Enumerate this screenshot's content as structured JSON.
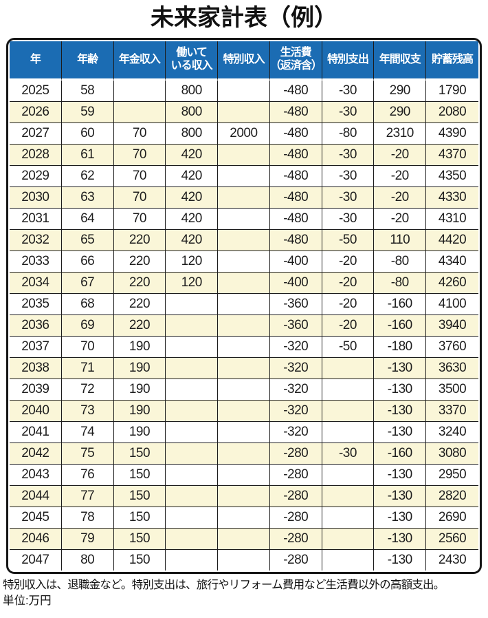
{
  "title": "未来家計表（例）",
  "chart_data": {
    "type": "table",
    "title": "未来家計表（例）",
    "unit": "万円",
    "columns": [
      "年",
      "年齢",
      "年金収入",
      "働いている収入",
      "特別収入",
      "生活費（返済含）",
      "特別支出",
      "年間収支",
      "貯蓄残高"
    ],
    "header_lines": [
      [
        "年"
      ],
      [
        "年齢"
      ],
      [
        "年金収入"
      ],
      [
        "働いて",
        "いる収入"
      ],
      [
        "特別収入"
      ],
      [
        "生活費",
        "（返済含）"
      ],
      [
        "特別支出"
      ],
      [
        "年間収支"
      ],
      [
        "貯蓄残高"
      ]
    ],
    "rows": [
      [
        2025,
        58,
        null,
        800,
        null,
        -480,
        -30,
        290,
        1790
      ],
      [
        2026,
        59,
        null,
        800,
        null,
        -480,
        -30,
        290,
        2080
      ],
      [
        2027,
        60,
        70,
        800,
        2000,
        -480,
        -80,
        2310,
        4390
      ],
      [
        2028,
        61,
        70,
        420,
        null,
        -480,
        -30,
        -20,
        4370
      ],
      [
        2029,
        62,
        70,
        420,
        null,
        -480,
        -30,
        -20,
        4350
      ],
      [
        2030,
        63,
        70,
        420,
        null,
        -480,
        -30,
        -20,
        4330
      ],
      [
        2031,
        64,
        70,
        420,
        null,
        -480,
        -30,
        -20,
        4310
      ],
      [
        2032,
        65,
        220,
        420,
        null,
        -480,
        -50,
        110,
        4420
      ],
      [
        2033,
        66,
        220,
        120,
        null,
        -400,
        -20,
        -80,
        4340
      ],
      [
        2034,
        67,
        220,
        120,
        null,
        -400,
        -20,
        -80,
        4260
      ],
      [
        2035,
        68,
        220,
        null,
        null,
        -360,
        -20,
        -160,
        4100
      ],
      [
        2036,
        69,
        220,
        null,
        null,
        -360,
        -20,
        -160,
        3940
      ],
      [
        2037,
        70,
        190,
        null,
        null,
        -320,
        -50,
        -180,
        3760
      ],
      [
        2038,
        71,
        190,
        null,
        null,
        -320,
        null,
        -130,
        3630
      ],
      [
        2039,
        72,
        190,
        null,
        null,
        -320,
        null,
        -130,
        3500
      ],
      [
        2040,
        73,
        190,
        null,
        null,
        -320,
        null,
        -130,
        3370
      ],
      [
        2041,
        74,
        190,
        null,
        null,
        -320,
        null,
        -130,
        3240
      ],
      [
        2042,
        75,
        150,
        null,
        null,
        -280,
        -30,
        -160,
        3080
      ],
      [
        2043,
        76,
        150,
        null,
        null,
        -280,
        null,
        -130,
        2950
      ],
      [
        2044,
        77,
        150,
        null,
        null,
        -280,
        null,
        -130,
        2820
      ],
      [
        2045,
        78,
        150,
        null,
        null,
        -280,
        null,
        -130,
        2690
      ],
      [
        2046,
        79,
        150,
        null,
        null,
        -280,
        null,
        -130,
        2560
      ],
      [
        2047,
        80,
        150,
        null,
        null,
        -280,
        null,
        -130,
        2430
      ]
    ],
    "layout": {
      "stripe_pattern": "alternating rows, white then cream starting at 2025",
      "grid": true
    }
  },
  "footnotes": {
    "line1": "特別収入は、退職金など。特別支出は、旅行やリフォーム費用など生活費以外の高額支出。",
    "line2": "単位:万円"
  },
  "colors": {
    "header_bg": "#1b6cb3",
    "header_text": "#ffffff",
    "stripe_bg": "#faf6d8",
    "row_bg": "#ffffff",
    "grid_line": "#1c1c1c",
    "outer_border": "#161616",
    "text": "#1e1e1e"
  }
}
